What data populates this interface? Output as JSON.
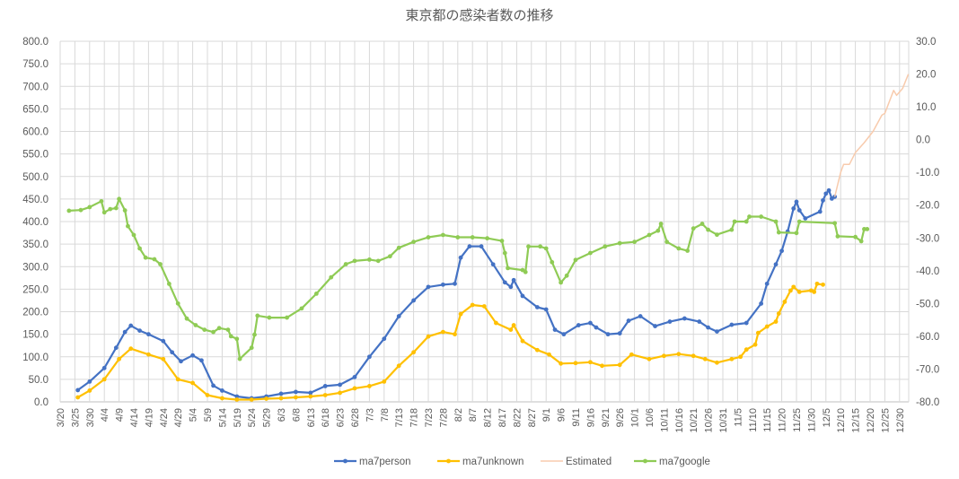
{
  "chart_data": {
    "type": "line",
    "title": "東京都の感染者数の推移",
    "year_start_month": 3,
    "x_ticks": [
      "3/20",
      "3/25",
      "3/30",
      "4/4",
      "4/9",
      "4/14",
      "4/19",
      "4/24",
      "4/29",
      "5/4",
      "5/9",
      "5/14",
      "5/19",
      "5/24",
      "5/29",
      "6/3",
      "6/8",
      "6/13",
      "6/18",
      "6/23",
      "6/28",
      "7/3",
      "7/8",
      "7/13",
      "7/18",
      "7/23",
      "7/28",
      "8/2",
      "8/7",
      "8/12",
      "8/17",
      "8/22",
      "8/27",
      "9/1",
      "9/6",
      "9/11",
      "9/16",
      "9/21",
      "9/26",
      "10/1",
      "10/6",
      "10/11",
      "10/16",
      "10/21",
      "10/26",
      "10/31",
      "11/5",
      "11/10",
      "11/15",
      "11/20",
      "11/25",
      "11/30",
      "12/5",
      "12/10",
      "12/15",
      "12/20",
      "12/25",
      "12/30"
    ],
    "y_left": {
      "min": 0,
      "max": 800,
      "step": 50,
      "tick_labels": [
        "0.0",
        "50.0",
        "100.0",
        "150.0",
        "200.0",
        "250.0",
        "300.0",
        "350.0",
        "400.0",
        "450.0",
        "500.0",
        "550.0",
        "600.0",
        "650.0",
        "700.0",
        "750.0",
        "800.0"
      ]
    },
    "y_right": {
      "min": -80,
      "max": 30,
      "step": 10,
      "tick_labels": [
        "-80.0",
        "-70.0",
        "-60.0",
        "-50.0",
        "-40.0",
        "-30.0",
        "-20.0",
        "-10.0",
        "0.0",
        "10.0",
        "20.0",
        "30.0"
      ]
    },
    "grid": true,
    "legend_position": "bottom",
    "series": [
      {
        "name": "ma7person",
        "axis": "left",
        "color": "#4472C4",
        "markers": true,
        "points": [
          [
            "3/26",
            26
          ],
          [
            "3/30",
            45
          ],
          [
            "4/4",
            75
          ],
          [
            "4/8",
            120
          ],
          [
            "4/11",
            155
          ],
          [
            "4/13",
            169
          ],
          [
            "4/16",
            158
          ],
          [
            "4/19",
            150
          ],
          [
            "4/24",
            135
          ],
          [
            "4/27",
            110
          ],
          [
            "4/30",
            90
          ],
          [
            "5/4",
            103
          ],
          [
            "5/7",
            92
          ],
          [
            "5/11",
            36
          ],
          [
            "5/14",
            25
          ],
          [
            "5/19",
            12
          ],
          [
            "5/24",
            8
          ],
          [
            "5/29",
            12
          ],
          [
            "6/3",
            18
          ],
          [
            "6/8",
            22
          ],
          [
            "6/13",
            20
          ],
          [
            "6/18",
            35
          ],
          [
            "6/23",
            38
          ],
          [
            "6/28",
            55
          ],
          [
            "7/3",
            100
          ],
          [
            "7/8",
            140
          ],
          [
            "7/13",
            190
          ],
          [
            "7/18",
            225
          ],
          [
            "7/23",
            255
          ],
          [
            "7/28",
            260
          ],
          [
            "8/1",
            262
          ],
          [
            "8/3",
            320
          ],
          [
            "8/6",
            345
          ],
          [
            "8/10",
            345
          ],
          [
            "8/14",
            305
          ],
          [
            "8/18",
            265
          ],
          [
            "8/20",
            255
          ],
          [
            "8/21",
            270
          ],
          [
            "8/24",
            235
          ],
          [
            "8/29",
            210
          ],
          [
            "9/1",
            205
          ],
          [
            "9/4",
            160
          ],
          [
            "9/7",
            150
          ],
          [
            "9/12",
            170
          ],
          [
            "9/16",
            175
          ],
          [
            "9/18",
            165
          ],
          [
            "9/22",
            150
          ],
          [
            "9/26",
            152
          ],
          [
            "9/29",
            180
          ],
          [
            "10/3",
            190
          ],
          [
            "10/8",
            168
          ],
          [
            "10/13",
            178
          ],
          [
            "10/18",
            185
          ],
          [
            "10/23",
            178
          ],
          [
            "10/26",
            165
          ],
          [
            "10/29",
            156
          ],
          [
            "11/3",
            171
          ],
          [
            "11/8",
            175
          ],
          [
            "11/13",
            218
          ],
          [
            "11/15",
            262
          ],
          [
            "11/18",
            305
          ],
          [
            "11/20",
            335
          ],
          [
            "11/22",
            378
          ],
          [
            "11/24",
            429
          ],
          [
            "11/25",
            444
          ],
          [
            "11/26",
            425
          ],
          [
            "11/28",
            407
          ],
          [
            "12/3",
            422
          ],
          [
            "12/4",
            447
          ],
          [
            "12/5",
            462
          ],
          [
            "12/6",
            469
          ],
          [
            "12/7",
            451
          ],
          [
            "12/8",
            455
          ]
        ]
      },
      {
        "name": "ma7unknown",
        "axis": "left",
        "color": "#FFC000",
        "markers": true,
        "points": [
          [
            "3/26",
            10
          ],
          [
            "3/30",
            25
          ],
          [
            "4/4",
            50
          ],
          [
            "4/9",
            95
          ],
          [
            "4/13",
            118
          ],
          [
            "4/19",
            105
          ],
          [
            "4/24",
            95
          ],
          [
            "4/29",
            50
          ],
          [
            "5/4",
            42
          ],
          [
            "5/9",
            15
          ],
          [
            "5/14",
            8
          ],
          [
            "5/19",
            5
          ],
          [
            "5/24",
            5
          ],
          [
            "5/29",
            7
          ],
          [
            "6/3",
            8
          ],
          [
            "6/8",
            10
          ],
          [
            "6/13",
            12
          ],
          [
            "6/18",
            15
          ],
          [
            "6/23",
            20
          ],
          [
            "6/28",
            30
          ],
          [
            "7/3",
            35
          ],
          [
            "7/8",
            45
          ],
          [
            "7/13",
            80
          ],
          [
            "7/18",
            110
          ],
          [
            "7/23",
            145
          ],
          [
            "7/28",
            155
          ],
          [
            "8/1",
            150
          ],
          [
            "8/3",
            195
          ],
          [
            "8/7",
            215
          ],
          [
            "8/11",
            212
          ],
          [
            "8/15",
            175
          ],
          [
            "8/20",
            160
          ],
          [
            "8/21",
            170
          ],
          [
            "8/24",
            135
          ],
          [
            "8/29",
            115
          ],
          [
            "9/2",
            105
          ],
          [
            "9/6",
            85
          ],
          [
            "9/11",
            86
          ],
          [
            "9/16",
            88
          ],
          [
            "9/20",
            80
          ],
          [
            "9/26",
            82
          ],
          [
            "9/30",
            105
          ],
          [
            "10/6",
            95
          ],
          [
            "10/11",
            102
          ],
          [
            "10/16",
            106
          ],
          [
            "10/21",
            102
          ],
          [
            "10/25",
            95
          ],
          [
            "10/29",
            87
          ],
          [
            "11/3",
            95
          ],
          [
            "11/6",
            100
          ],
          [
            "11/8",
            116
          ],
          [
            "11/11",
            127
          ],
          [
            "11/12",
            153
          ],
          [
            "11/15",
            167
          ],
          [
            "11/18",
            178
          ],
          [
            "11/19",
            196
          ],
          [
            "11/21",
            222
          ],
          [
            "11/23",
            247
          ],
          [
            "11/24",
            255
          ],
          [
            "11/26",
            244
          ],
          [
            "11/30",
            247
          ],
          [
            "12/1",
            244
          ],
          [
            "12/2",
            262
          ],
          [
            "12/4",
            260
          ]
        ]
      },
      {
        "name": "Estimated",
        "axis": "left",
        "color": "#F8CBAD",
        "markers": false,
        "points": [
          [
            "12/8",
            455
          ],
          [
            "12/10",
            509
          ],
          [
            "12/11",
            527
          ],
          [
            "12/13",
            527
          ],
          [
            "12/15",
            553
          ],
          [
            "12/18",
            575
          ],
          [
            "12/21",
            600
          ],
          [
            "12/24",
            636
          ],
          [
            "12/25",
            640
          ],
          [
            "12/28",
            691
          ],
          [
            "12/29",
            680
          ],
          [
            "12/31",
            695
          ],
          [
            "1/2",
            727
          ]
        ]
      },
      {
        "name": "ma7google",
        "axis": "right",
        "color": "#8FCB55",
        "markers": true,
        "points": [
          [
            "3/23",
            -21.7
          ],
          [
            "3/27",
            -21.5
          ],
          [
            "3/30",
            -20.6
          ],
          [
            "4/3",
            -18.8
          ],
          [
            "4/4",
            -22.2
          ],
          [
            "4/6",
            -21.2
          ],
          [
            "4/8",
            -20.9
          ],
          [
            "4/9",
            -18.1
          ],
          [
            "4/11",
            -21.6
          ],
          [
            "4/12",
            -26.4
          ],
          [
            "4/14",
            -29.1
          ],
          [
            "4/16",
            -33.2
          ],
          [
            "4/18",
            -36
          ],
          [
            "4/21",
            -36.5
          ],
          [
            "4/23",
            -38
          ],
          [
            "4/26",
            -44
          ],
          [
            "4/29",
            -50
          ],
          [
            "5/2",
            -54.6
          ],
          [
            "5/5",
            -56.6
          ],
          [
            "5/8",
            -58
          ],
          [
            "5/11",
            -58.7
          ],
          [
            "5/13",
            -57.5
          ],
          [
            "5/16",
            -58
          ],
          [
            "5/17",
            -60
          ],
          [
            "5/19",
            -60.8
          ],
          [
            "5/20",
            -66.9
          ],
          [
            "5/24",
            -63.5
          ],
          [
            "5/25",
            -59.5
          ],
          [
            "5/26",
            -53.7
          ],
          [
            "5/30",
            -54.3
          ],
          [
            "6/5",
            -54.3
          ],
          [
            "6/10",
            -51.5
          ],
          [
            "6/15",
            -47
          ],
          [
            "6/20",
            -42
          ],
          [
            "6/25",
            -38
          ],
          [
            "6/28",
            -37
          ],
          [
            "7/3",
            -36.6
          ],
          [
            "7/6",
            -37
          ],
          [
            "7/10",
            -35.6
          ],
          [
            "7/13",
            -33
          ],
          [
            "7/18",
            -31.2
          ],
          [
            "7/23",
            -29.8
          ],
          [
            "7/28",
            -29.1
          ],
          [
            "8/2",
            -29.8
          ],
          [
            "8/7",
            -29.8
          ],
          [
            "8/12",
            -30.1
          ],
          [
            "8/17",
            -30.9
          ],
          [
            "8/18",
            -34.6
          ],
          [
            "8/19",
            -39.2
          ],
          [
            "8/24",
            -39.8
          ],
          [
            "8/25",
            -40.4
          ],
          [
            "8/26",
            -32.6
          ],
          [
            "8/30",
            -32.6
          ],
          [
            "9/1",
            -33.2
          ],
          [
            "9/3",
            -37.4
          ],
          [
            "9/6",
            -43.6
          ],
          [
            "9/8",
            -41.5
          ],
          [
            "9/11",
            -36.7
          ],
          [
            "9/16",
            -34.6
          ],
          [
            "9/21",
            -32.6
          ],
          [
            "9/26",
            -31.6
          ],
          [
            "10/1",
            -31.2
          ],
          [
            "10/6",
            -29.1
          ],
          [
            "10/9",
            -27.8
          ],
          [
            "10/10",
            -25.7
          ],
          [
            "10/12",
            -31.2
          ],
          [
            "10/16",
            -33.2
          ],
          [
            "10/19",
            -33.9
          ],
          [
            "10/21",
            -27.1
          ],
          [
            "10/24",
            -25.7
          ],
          [
            "10/26",
            -27.5
          ],
          [
            "10/29",
            -29
          ],
          [
            "11/3",
            -27.5
          ],
          [
            "11/4",
            -25
          ],
          [
            "11/8",
            -25
          ],
          [
            "11/9",
            -23.5
          ],
          [
            "11/13",
            -23.5
          ],
          [
            "11/18",
            -25
          ],
          [
            "11/19",
            -28.3
          ],
          [
            "11/25",
            -28.5
          ],
          [
            "11/26",
            -25
          ],
          [
            "12/8",
            -25.5
          ],
          [
            "12/9",
            -29.5
          ],
          [
            "12/15",
            -29.7
          ],
          [
            "12/17",
            -31
          ],
          [
            "12/18",
            -27.3
          ],
          [
            "12/19",
            -27.3
          ]
        ]
      }
    ]
  }
}
